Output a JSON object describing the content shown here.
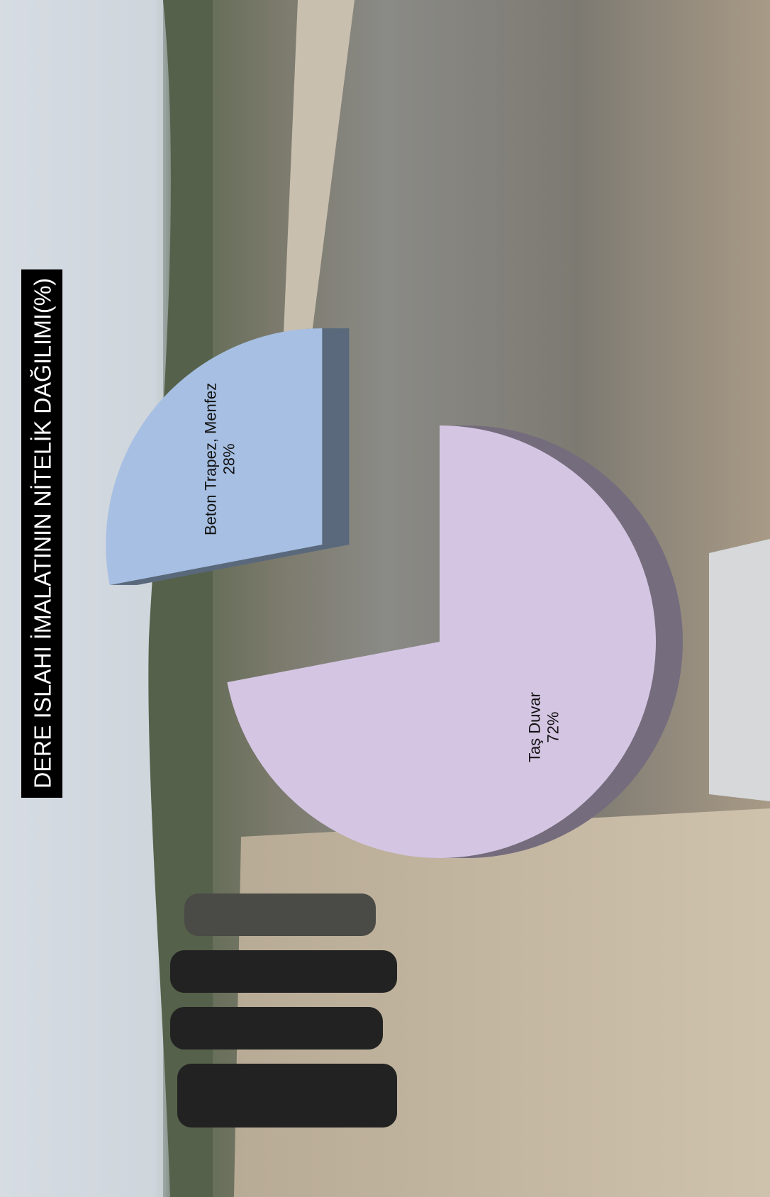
{
  "chart_data": {
    "type": "pie",
    "title": "DERE ISLAHI İMALATININ NİTELİK DAĞILIMI(%)",
    "categories": [
      "Beton Trapez, Menfez",
      "Taş Duvar"
    ],
    "values": [
      28,
      72
    ],
    "value_labels": [
      "28%",
      "72%"
    ],
    "colors": [
      "#a6bfe2",
      "#d4c6e3"
    ],
    "exploded": [
      true,
      false
    ]
  }
}
